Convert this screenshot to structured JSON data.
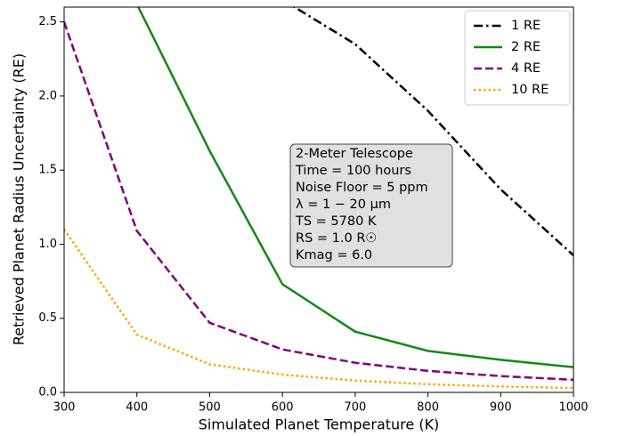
{
  "chart_data": {
    "type": "line",
    "xlabel": "Simulated Planet Temperature (K)",
    "ylabel": "Retrieved Planet Radius Uncertainty (RE)",
    "x": [
      300,
      400,
      500,
      600,
      700,
      800,
      900,
      1000
    ],
    "series": [
      {
        "name": "1 RE",
        "color": "#000000",
        "dash": "dashdot",
        "values": [
          null,
          null,
          null,
          2.65,
          2.35,
          1.9,
          1.37,
          0.925
        ]
      },
      {
        "name": "2 RE",
        "color": "#138a13",
        "dash": "solid",
        "values": [
          null,
          2.62,
          1.63,
          0.73,
          0.41,
          0.28,
          0.22,
          0.17
        ]
      },
      {
        "name": "4 RE",
        "color": "#800080",
        "dash": "dashed",
        "values": [
          2.5,
          1.09,
          0.47,
          0.29,
          0.2,
          0.145,
          0.11,
          0.085
        ]
      },
      {
        "name": "10 RE",
        "color": "#ffa500",
        "dash": "dotted",
        "values": [
          1.1,
          0.39,
          0.19,
          0.12,
          0.08,
          0.055,
          0.04,
          0.03
        ]
      }
    ],
    "xlim": [
      300,
      1000
    ],
    "xticks": [
      300,
      400,
      500,
      600,
      700,
      800,
      900,
      1000
    ],
    "ylim": [
      0,
      2.6
    ],
    "yticks": [
      {
        "value": 0,
        "label": "0.0"
      },
      0.5,
      {
        "value": 1,
        "label": "1.0"
      },
      1.5,
      {
        "value": 2,
        "label": "2.0"
      },
      2.5
    ],
    "legend": "upper right",
    "annotation": [
      "2-Meter Telescope",
      "Time = 100 hours",
      "Noise Floor = 5 ppm",
      "λ = 1 − 20 μm",
      "TS = 5780 K",
      "RS = 1.0 R☉",
      "Kmag = 6.0"
    ]
  }
}
